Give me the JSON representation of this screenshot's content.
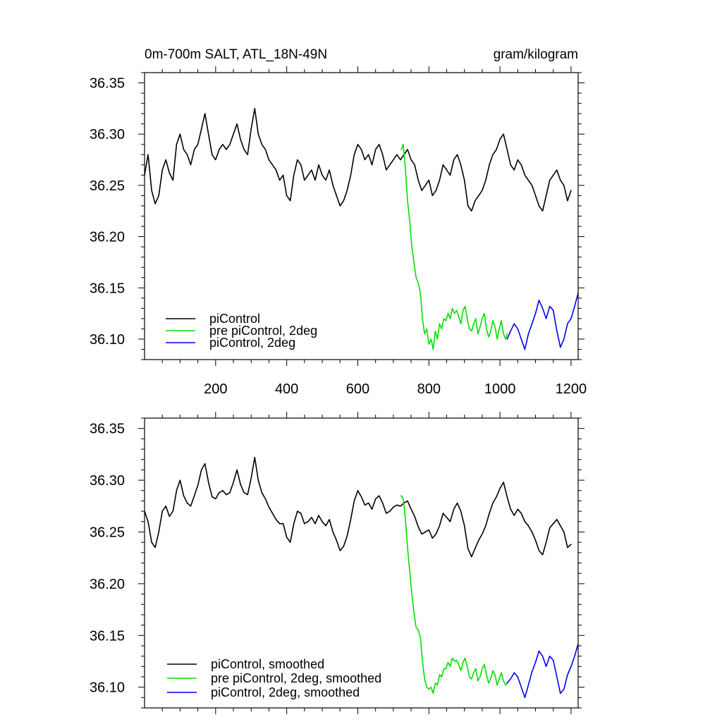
{
  "chart_data": [
    {
      "type": "line",
      "title_left": "0m-700m SALT, ATL_18N-49N",
      "title_right": "gram/kilogram",
      "xlim": [
        0,
        1220
      ],
      "ylim": [
        36.08,
        36.36
      ],
      "xticks": [
        200,
        400,
        600,
        800,
        1000,
        1200
      ],
      "xtick_labels": [
        "200",
        "400",
        "600",
        "800",
        "1000",
        "1200"
      ],
      "yticks": [
        36.1,
        36.15,
        36.2,
        36.25,
        36.3,
        36.35
      ],
      "ytick_labels": [
        "36.10",
        "36.15",
        "36.20",
        "36.25",
        "36.30",
        "36.35"
      ],
      "legend_position": "bottom-left",
      "series": [
        {
          "name": "piControl",
          "color": "#000000",
          "x": [
            0,
            10,
            20,
            30,
            40,
            50,
            60,
            70,
            80,
            90,
            100,
            110,
            120,
            130,
            140,
            150,
            160,
            170,
            180,
            190,
            200,
            210,
            220,
            230,
            240,
            250,
            260,
            270,
            280,
            290,
            300,
            310,
            320,
            330,
            340,
            350,
            360,
            370,
            380,
            390,
            400,
            410,
            420,
            430,
            440,
            450,
            460,
            470,
            480,
            490,
            500,
            510,
            520,
            530,
            540,
            550,
            560,
            570,
            580,
            590,
            600,
            610,
            620,
            630,
            640,
            650,
            660,
            670,
            680,
            690,
            700,
            710,
            720,
            730,
            740,
            750,
            760,
            770,
            780,
            790,
            800,
            810,
            820,
            830,
            840,
            850,
            860,
            870,
            880,
            890,
            900,
            910,
            920,
            930,
            940,
            950,
            960,
            970,
            980,
            990,
            1000,
            1010,
            1020,
            1030,
            1040,
            1050,
            1060,
            1070,
            1080,
            1090,
            1100,
            1110,
            1120,
            1130,
            1140,
            1150,
            1160,
            1170,
            1180,
            1190,
            1200
          ],
          "y": [
            36.26,
            36.28,
            36.245,
            36.232,
            36.24,
            36.265,
            36.275,
            36.262,
            36.255,
            36.29,
            36.3,
            36.285,
            36.28,
            36.27,
            36.285,
            36.29,
            36.305,
            36.32,
            36.3,
            36.28,
            36.275,
            36.285,
            36.29,
            36.285,
            36.29,
            36.3,
            36.31,
            36.295,
            36.285,
            36.28,
            36.305,
            36.325,
            36.3,
            36.29,
            36.285,
            36.275,
            36.27,
            36.265,
            36.255,
            36.26,
            36.24,
            36.235,
            36.26,
            36.275,
            36.27,
            36.255,
            36.26,
            36.265,
            36.255,
            36.27,
            36.26,
            36.255,
            36.265,
            36.25,
            36.24,
            36.23,
            36.235,
            36.245,
            36.26,
            36.28,
            36.29,
            36.285,
            36.275,
            36.28,
            36.27,
            36.285,
            36.29,
            36.28,
            36.265,
            36.27,
            36.275,
            36.28,
            36.275,
            36.28,
            36.285,
            36.275,
            36.27,
            36.255,
            36.245,
            36.25,
            36.255,
            36.24,
            36.245,
            36.255,
            36.27,
            36.265,
            36.26,
            36.275,
            36.28,
            36.27,
            36.255,
            36.23,
            36.225,
            36.235,
            36.24,
            36.245,
            36.255,
            36.27,
            36.28,
            36.285,
            36.295,
            36.3,
            36.285,
            36.27,
            36.265,
            36.275,
            36.27,
            36.26,
            36.255,
            36.25,
            36.24,
            36.23,
            36.225,
            36.24,
            36.255,
            36.26,
            36.265,
            36.255,
            36.25,
            36.235,
            36.245
          ]
        },
        {
          "name": "pre piControl, 2deg",
          "color": "#00e000",
          "x": [
            722,
            728,
            734,
            740,
            746,
            752,
            758,
            764,
            770,
            776,
            782,
            788,
            794,
            800,
            806,
            812,
            818,
            824,
            830,
            836,
            842,
            848,
            854,
            860,
            866,
            872,
            878,
            884,
            890,
            896,
            902,
            908,
            914,
            920,
            926,
            932,
            938,
            944,
            950,
            956,
            962,
            968,
            974,
            980,
            986,
            992,
            998,
            1004,
            1010,
            1016,
            1020
          ],
          "y": [
            36.285,
            36.29,
            36.265,
            36.235,
            36.215,
            36.19,
            36.175,
            36.16,
            36.155,
            36.145,
            36.12,
            36.105,
            36.11,
            36.095,
            36.1,
            36.09,
            36.108,
            36.1,
            36.115,
            36.11,
            36.12,
            36.118,
            36.125,
            36.12,
            36.13,
            36.125,
            36.128,
            36.122,
            36.115,
            36.128,
            36.132,
            36.12,
            36.11,
            36.108,
            36.115,
            36.12,
            36.105,
            36.112,
            36.12,
            36.125,
            36.11,
            36.102,
            36.108,
            36.118,
            36.112,
            36.1,
            36.11,
            36.118,
            36.105,
            36.1,
            36.105
          ]
        },
        {
          "name": "piControl, 2deg",
          "color": "#0000ee",
          "x": [
            1020,
            1030,
            1040,
            1050,
            1060,
            1070,
            1080,
            1090,
            1100,
            1110,
            1120,
            1130,
            1140,
            1150,
            1160,
            1170,
            1180,
            1190,
            1200,
            1210,
            1220
          ],
          "y": [
            36.1,
            36.108,
            36.115,
            36.11,
            36.1,
            36.09,
            36.105,
            36.115,
            36.125,
            36.138,
            36.13,
            36.12,
            36.132,
            36.128,
            36.108,
            36.092,
            36.1,
            36.115,
            36.12,
            36.132,
            36.145
          ]
        }
      ]
    },
    {
      "type": "line",
      "xlim": [
        0,
        1220
      ],
      "ylim": [
        36.08,
        36.36
      ],
      "xticks": [
        200,
        400,
        600,
        800,
        1000,
        1200
      ],
      "yticks": [
        36.1,
        36.15,
        36.2,
        36.25,
        36.3,
        36.35
      ],
      "ytick_labels": [
        "36.10",
        "36.15",
        "36.20",
        "36.25",
        "36.30",
        "36.35"
      ],
      "legend_position": "bottom-left",
      "series": [
        {
          "name": "piControl, smoothed",
          "color": "#000000",
          "x": [
            0,
            10,
            20,
            30,
            40,
            50,
            60,
            70,
            80,
            90,
            100,
            110,
            120,
            130,
            140,
            150,
            160,
            170,
            180,
            190,
            200,
            210,
            220,
            230,
            240,
            250,
            260,
            270,
            280,
            290,
            300,
            310,
            320,
            330,
            340,
            350,
            360,
            370,
            380,
            390,
            400,
            410,
            420,
            430,
            440,
            450,
            460,
            470,
            480,
            490,
            500,
            510,
            520,
            530,
            540,
            550,
            560,
            570,
            580,
            590,
            600,
            610,
            620,
            630,
            640,
            650,
            660,
            670,
            680,
            690,
            700,
            710,
            720,
            730,
            740,
            750,
            760,
            770,
            780,
            790,
            800,
            810,
            820,
            830,
            840,
            850,
            860,
            870,
            880,
            890,
            900,
            910,
            920,
            930,
            940,
            950,
            960,
            970,
            980,
            990,
            1000,
            1010,
            1020,
            1030,
            1040,
            1050,
            1060,
            1070,
            1080,
            1090,
            1100,
            1110,
            1120,
            1130,
            1140,
            1150,
            1160,
            1170,
            1180,
            1190,
            1200
          ],
          "y": [
            36.27,
            36.26,
            36.24,
            36.235,
            36.25,
            36.27,
            36.275,
            36.265,
            36.27,
            36.29,
            36.3,
            36.285,
            36.278,
            36.275,
            36.285,
            36.295,
            36.31,
            36.316,
            36.298,
            36.284,
            36.282,
            36.288,
            36.29,
            36.286,
            36.288,
            36.298,
            36.31,
            36.296,
            36.288,
            36.286,
            36.302,
            36.322,
            36.3,
            36.288,
            36.282,
            36.274,
            36.268,
            36.262,
            36.258,
            36.258,
            36.245,
            36.24,
            36.258,
            36.27,
            36.268,
            36.258,
            36.26,
            36.264,
            36.258,
            36.266,
            36.26,
            36.256,
            36.262,
            36.25,
            36.242,
            36.232,
            36.236,
            36.246,
            36.262,
            36.28,
            36.29,
            36.284,
            36.276,
            36.278,
            36.272,
            36.282,
            36.285,
            36.278,
            36.268,
            36.27,
            36.274,
            36.276,
            36.275,
            36.278,
            36.28,
            36.272,
            36.265,
            36.255,
            36.248,
            36.25,
            36.252,
            36.244,
            36.248,
            36.256,
            36.268,
            36.264,
            36.26,
            36.272,
            36.278,
            36.27,
            36.256,
            36.234,
            36.226,
            36.234,
            36.242,
            36.248,
            36.256,
            36.268,
            36.278,
            36.284,
            36.292,
            36.298,
            36.284,
            36.272,
            36.266,
            36.272,
            36.268,
            36.26,
            36.256,
            36.25,
            36.242,
            36.232,
            36.228,
            36.24,
            36.254,
            36.258,
            36.262,
            36.256,
            36.25,
            36.235,
            36.238
          ]
        },
        {
          "name": "pre piControl, 2deg, smoothed",
          "color": "#00e000",
          "x": [
            722,
            728,
            734,
            740,
            746,
            752,
            758,
            764,
            770,
            776,
            782,
            788,
            794,
            800,
            806,
            812,
            818,
            824,
            830,
            836,
            842,
            848,
            854,
            860,
            866,
            872,
            878,
            884,
            890,
            896,
            902,
            908,
            914,
            920,
            926,
            932,
            938,
            944,
            950,
            956,
            962,
            968,
            974,
            980,
            986,
            992,
            998,
            1004,
            1010,
            1016,
            1020
          ],
          "y": [
            36.285,
            36.282,
            36.262,
            36.235,
            36.212,
            36.19,
            36.172,
            36.158,
            36.155,
            36.148,
            36.125,
            36.108,
            36.1,
            36.098,
            36.1,
            36.094,
            36.104,
            36.102,
            36.112,
            36.11,
            36.118,
            36.118,
            36.124,
            36.12,
            36.128,
            36.125,
            36.126,
            36.122,
            36.116,
            36.124,
            36.128,
            36.12,
            36.11,
            36.108,
            36.114,
            36.118,
            36.106,
            36.11,
            36.118,
            36.122,
            36.112,
            36.104,
            36.108,
            36.116,
            36.112,
            36.102,
            36.108,
            36.114,
            36.106,
            36.102,
            36.104
          ]
        },
        {
          "name": "piControl, 2deg, smoothed",
          "color": "#0000ee",
          "x": [
            1020,
            1030,
            1040,
            1050,
            1060,
            1070,
            1080,
            1090,
            1100,
            1110,
            1120,
            1130,
            1140,
            1150,
            1160,
            1170,
            1180,
            1190,
            1200,
            1210,
            1220
          ],
          "y": [
            36.104,
            36.108,
            36.114,
            36.11,
            36.1,
            36.09,
            36.102,
            36.115,
            36.124,
            36.135,
            36.13,
            36.12,
            36.13,
            36.126,
            36.11,
            36.094,
            36.098,
            36.112,
            36.12,
            36.13,
            36.142
          ]
        }
      ]
    }
  ]
}
